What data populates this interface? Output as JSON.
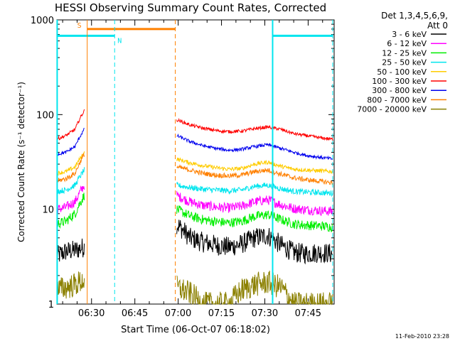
{
  "chart_data": {
    "type": "line",
    "title": "HESSI Observing Summary Count Rates, Corrected",
    "ylabel": "Corrected Count Rate (s⁻¹ detector⁻¹)",
    "xlabel": "Start Time (06-Oct-07 06:18:02)",
    "yscale": "log",
    "ylim": [
      1,
      1000
    ],
    "xlim_minutes": [
      0,
      96
    ],
    "y_tick_labels": [
      "1",
      "10",
      "100",
      "1000"
    ],
    "y_tick_values": [
      1,
      10,
      100,
      1000
    ],
    "x_tick_labels": [
      "06:30",
      "06:45",
      "07:00",
      "07:15",
      "07:30",
      "07:45"
    ],
    "x_tick_minutes": [
      11.97,
      26.97,
      41.97,
      56.97,
      71.97,
      86.97
    ],
    "legend_header": [
      "Det 1,3,4,5,6,9,",
      "Att 0"
    ],
    "footer_date": "11-Feb-2010 23:28",
    "markers": [
      {
        "label": "S",
        "color": "#ff8000",
        "solid_minute": 10.5,
        "dashed_minute": 41.0,
        "bar_y": 800
      },
      {
        "label": "N",
        "color": "#00e5ee",
        "dashed_minute": 20.0,
        "bar_y": 680
      }
    ],
    "cyan_lines": {
      "left_solid": 0.1,
      "left_bar_end": 20.0,
      "right_solid": 74.7,
      "right_dashed": 95.5,
      "y": 680
    },
    "series": [
      {
        "name": "3 - 6 keV",
        "color": "#000000",
        "pre": [
          3.2,
          3.6,
          3.7,
          4.0
        ],
        "post": [
          7.0,
          5.0,
          4.5,
          4.2,
          4.0,
          4.3,
          5.0,
          5.3,
          4.2,
          3.5,
          3.4,
          3.5,
          3.4
        ],
        "noise": 0.25
      },
      {
        "name": "6 - 12 keV",
        "color": "#ff00ff",
        "pre": [
          10.0,
          10.5,
          12.0,
          18.0
        ],
        "post": [
          14.0,
          12.0,
          11.0,
          10.6,
          10.3,
          10.8,
          12.0,
          12.6,
          11.2,
          10.2,
          9.9,
          9.7,
          9.5
        ],
        "noise": 0.12
      },
      {
        "name": "12 - 25 keV",
        "color": "#00ee00",
        "pre": [
          7.0,
          7.5,
          9.0,
          14.0
        ],
        "post": [
          10.0,
          8.5,
          7.8,
          7.4,
          7.2,
          7.5,
          8.4,
          8.8,
          7.8,
          7.0,
          6.8,
          6.7,
          6.5
        ],
        "noise": 0.12
      },
      {
        "name": "25 - 50 keV",
        "color": "#00e5ee",
        "pre": [
          15.5,
          16.0,
          18.0,
          26.0
        ],
        "post": [
          18.0,
          17.0,
          16.3,
          16.0,
          15.7,
          16.0,
          17.5,
          18.0,
          16.5,
          15.5,
          15.2,
          15.0,
          14.8
        ],
        "noise": 0.07
      },
      {
        "name": "50 - 100 keV",
        "color": "#ffcc00",
        "pre": [
          24.0,
          25.0,
          28.0,
          40.0
        ],
        "post": [
          34.0,
          31.0,
          29.0,
          27.5,
          26.5,
          27.0,
          30.0,
          31.5,
          28.5,
          26.5,
          26.0,
          25.5,
          25.0
        ],
        "noise": 0.05
      },
      {
        "name": "100 - 300 keV",
        "color": "#ff0000",
        "pre": [
          55.0,
          60.0,
          70.0,
          110.0
        ],
        "post": [
          88.0,
          78.0,
          72.0,
          68.0,
          66.0,
          67.0,
          71.0,
          74.0,
          70.0,
          63.0,
          60.0,
          57.0,
          55.0
        ],
        "noise": 0.04
      },
      {
        "name": "300 - 800 keV",
        "color": "#0000ee",
        "pre": [
          38.0,
          40.0,
          46.0,
          70.0
        ],
        "post": [
          60.0,
          52.0,
          47.0,
          44.0,
          42.0,
          43.0,
          46.0,
          48.0,
          44.0,
          40.0,
          37.0,
          35.5,
          34.0
        ],
        "noise": 0.04
      },
      {
        "name": "800 - 7000 keV",
        "color": "#ff8000",
        "pre": [
          20.0,
          21.0,
          24.0,
          38.0
        ],
        "post": [
          28.0,
          26.0,
          24.0,
          23.0,
          22.5,
          23.0,
          25.0,
          26.0,
          23.5,
          21.5,
          20.5,
          19.8,
          19.0
        ],
        "noise": 0.06
      },
      {
        "name": "7000 - 20000 keV",
        "color": "#8b8000",
        "pre": [
          1.4,
          1.5,
          1.6,
          1.8
        ],
        "post": [
          1.5,
          1.3,
          1.0,
          1.0,
          1.0,
          1.4,
          1.6,
          1.7,
          1.5,
          1.0,
          1.0,
          1.0,
          1.0
        ],
        "noise": 0.3
      }
    ],
    "data_gap_minutes": [
      10.5,
      41.0
    ],
    "pre_range_minutes": [
      0,
      9.5
    ],
    "post_range_minutes": [
      41.5,
      95.5
    ]
  }
}
